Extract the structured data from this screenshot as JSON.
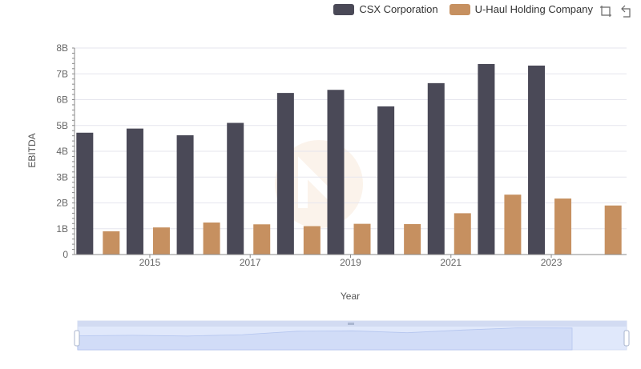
{
  "legend": {
    "items": [
      {
        "label": "CSX Corporation",
        "color": "#4a4957"
      },
      {
        "label": "U-Haul Holding Company",
        "color": "#c69060"
      }
    ]
  },
  "toolbar": {
    "icons": [
      "zoom-select-icon",
      "zoom-reset-icon"
    ]
  },
  "chart_data": {
    "type": "bar",
    "xlabel": "Year",
    "ylabel": "EBITDA",
    "ylim": [
      0,
      8000000000
    ],
    "y_ticks": [
      "0",
      "1B",
      "2B",
      "3B",
      "4B",
      "5B",
      "6B",
      "7B",
      "8B"
    ],
    "x_tick_labels": [
      "2015",
      "2017",
      "2019",
      "2021",
      "2023"
    ],
    "categories": [
      "2014",
      "2015",
      "2016",
      "2017",
      "2018",
      "2019",
      "2020",
      "2021",
      "2022",
      "2023",
      "2024"
    ],
    "series": [
      {
        "name": "CSX Corporation",
        "color": "#4a4957",
        "values": [
          4720000000,
          4880000000,
          4620000000,
          5100000000,
          6260000000,
          6380000000,
          5740000000,
          6640000000,
          7380000000,
          7320000000,
          null
        ]
      },
      {
        "name": "U-Haul Holding Company",
        "color": "#c69060",
        "values": [
          900000000,
          1050000000,
          1240000000,
          1170000000,
          1100000000,
          1190000000,
          1180000000,
          1600000000,
          2320000000,
          2170000000,
          1900000000
        ]
      }
    ],
    "grid": true,
    "legend_position": "top-right",
    "data_zoom": {
      "start": 0,
      "end": 100
    }
  }
}
